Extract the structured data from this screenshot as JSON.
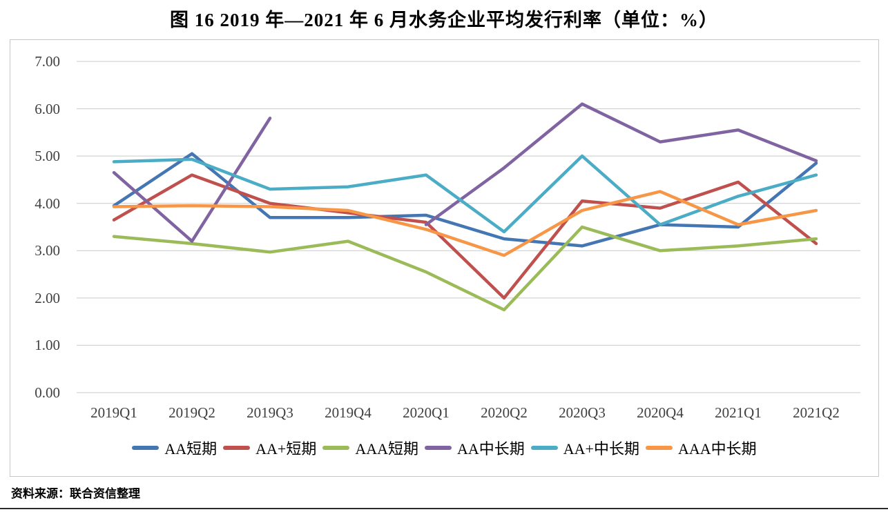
{
  "title": "图 16  2019 年—2021 年 6 月水务企业平均发行利率（单位：%）",
  "source_note": "资料来源：联合资信整理",
  "chart_data": {
    "type": "line",
    "title": "图 16  2019 年—2021 年 6 月水务企业平均发行利率（单位：%）",
    "categories": [
      "2019Q1",
      "2019Q2",
      "2019Q3",
      "2019Q4",
      "2020Q1",
      "2020Q2",
      "2020Q3",
      "2020Q4",
      "2021Q1",
      "2021Q2"
    ],
    "series": [
      {
        "name": "AA短期",
        "color": "#4476b4",
        "values": [
          3.95,
          5.05,
          3.7,
          3.7,
          3.75,
          3.25,
          3.1,
          3.55,
          3.5,
          4.85
        ]
      },
      {
        "name": "AA+短期",
        "color": "#c0504d",
        "values": [
          3.65,
          4.6,
          4.0,
          3.8,
          3.6,
          2.0,
          4.05,
          3.9,
          4.45,
          3.15
        ]
      },
      {
        "name": "AAA短期",
        "color": "#9bbb59",
        "values": [
          3.3,
          3.15,
          2.97,
          3.2,
          2.55,
          1.75,
          3.5,
          3.0,
          3.1,
          3.25
        ]
      },
      {
        "name": "AA中长期",
        "color": "#8064a2",
        "values": [
          4.65,
          3.2,
          5.8,
          null,
          3.55,
          4.75,
          6.1,
          5.3,
          5.55,
          4.9
        ]
      },
      {
        "name": "AA+中长期",
        "color": "#4bacc6",
        "values": [
          4.88,
          4.93,
          4.3,
          4.35,
          4.6,
          3.4,
          5.0,
          3.55,
          4.15,
          4.6
        ]
      },
      {
        "name": "AAA中长期",
        "color": "#f79646",
        "values": [
          3.93,
          3.95,
          3.93,
          3.85,
          3.45,
          2.9,
          3.85,
          4.25,
          3.55,
          3.85
        ]
      }
    ],
    "ylim": [
      0,
      7
    ],
    "ytick_step": 1.0,
    "ytick_labels": [
      "0.00",
      "1.00",
      "2.00",
      "3.00",
      "4.00",
      "5.00",
      "6.00",
      "7.00"
    ],
    "grid": "horizontal",
    "gridline_color": "#c9c9c9",
    "legend_position": "bottom"
  }
}
